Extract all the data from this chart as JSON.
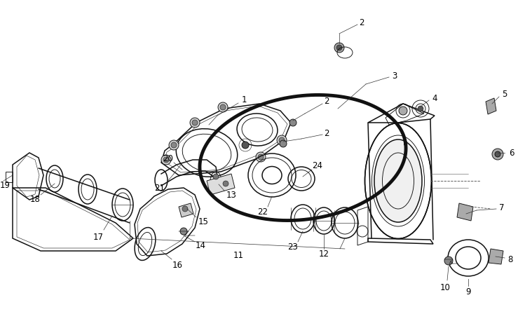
{
  "background_color": "#ffffff",
  "line_color": "#111111",
  "label_color": "#000000",
  "fig_width": 7.39,
  "fig_height": 4.58,
  "dpi": 100,
  "font_size": 8.5
}
